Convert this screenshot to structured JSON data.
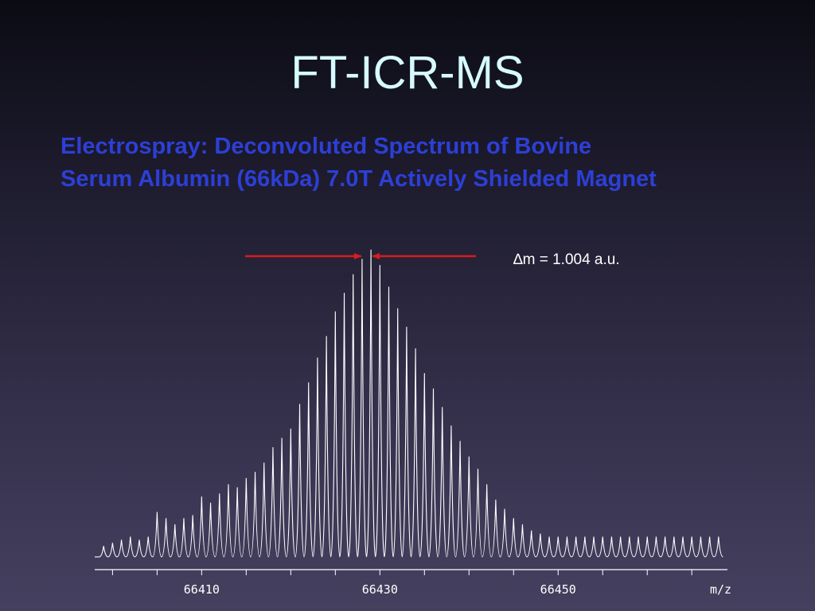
{
  "slide": {
    "title": "FT-ICR-MS",
    "subtitle_line1": "Electrospray: Deconvoluted Spectrum of Bovine",
    "subtitle_line2": "Serum Albumin (66kDa) 7.0T Actively Shielded Magnet"
  },
  "colors": {
    "title": "#d6faff",
    "subtitle": "#2d3fd6",
    "spectrum_line": "#ffffff",
    "arrow": "#d81c1c"
  },
  "chart_data": {
    "type": "line",
    "title": "",
    "xlabel": "m/z",
    "ylabel": "",
    "xlim": [
      66398,
      66469
    ],
    "ylim": [
      0,
      100
    ],
    "grid": false,
    "x_ticks": [
      66410,
      66430,
      66450
    ],
    "x_tick_labels": [
      "66410",
      "66430",
      "66450"
    ],
    "peak_spacing": 1.004,
    "peak_x": [
      66399.0,
      66400.0,
      66401.0,
      66402.0,
      66403.0,
      66404.0,
      66405.0,
      66406.0,
      66407.0,
      66408.0,
      66409.0,
      66410.0,
      66411.0,
      66412.0,
      66413.0,
      66414.0,
      66415.0,
      66416.0,
      66417.0,
      66418.0,
      66419.0,
      66420.0,
      66421.0,
      66422.0,
      66423.0,
      66424.0,
      66425.0,
      66426.0,
      66427.0,
      66428.0,
      66429.0,
      66430.0,
      66431.0,
      66432.0,
      66433.0,
      66434.0,
      66435.0,
      66436.0,
      66437.0,
      66438.0,
      66439.0,
      66440.0,
      66441.0,
      66442.0,
      66443.0,
      66444.0,
      66445.0,
      66446.0,
      66447.0,
      66448.0,
      66449.0,
      66450.0,
      66451.0,
      66452.0,
      66453.0,
      66454.0,
      66455.0,
      66456.0,
      66457.0,
      66458.0,
      66459.0,
      66460.0,
      66461.0,
      66462.0,
      66463.0,
      66464.0,
      66465.0,
      66466.0,
      66467.0,
      66468.0
    ],
    "peak_y": [
      2,
      3,
      4,
      5,
      4,
      5,
      13,
      11,
      9,
      11,
      12,
      18,
      16,
      19,
      22,
      21,
      24,
      26,
      29,
      34,
      37,
      40,
      48,
      55,
      63,
      70,
      78,
      84,
      90,
      95,
      98,
      93,
      86,
      79,
      73,
      66,
      58,
      53,
      47,
      41,
      36,
      31,
      27,
      22,
      17,
      14,
      11,
      9,
      7,
      6,
      5,
      5,
      5,
      5,
      5,
      5,
      5,
      5,
      5,
      5,
      5,
      5,
      5,
      5,
      5,
      5,
      5,
      5,
      5,
      5
    ],
    "annotations": [
      {
        "text": "∆m = 1.004 a.u."
      }
    ]
  }
}
